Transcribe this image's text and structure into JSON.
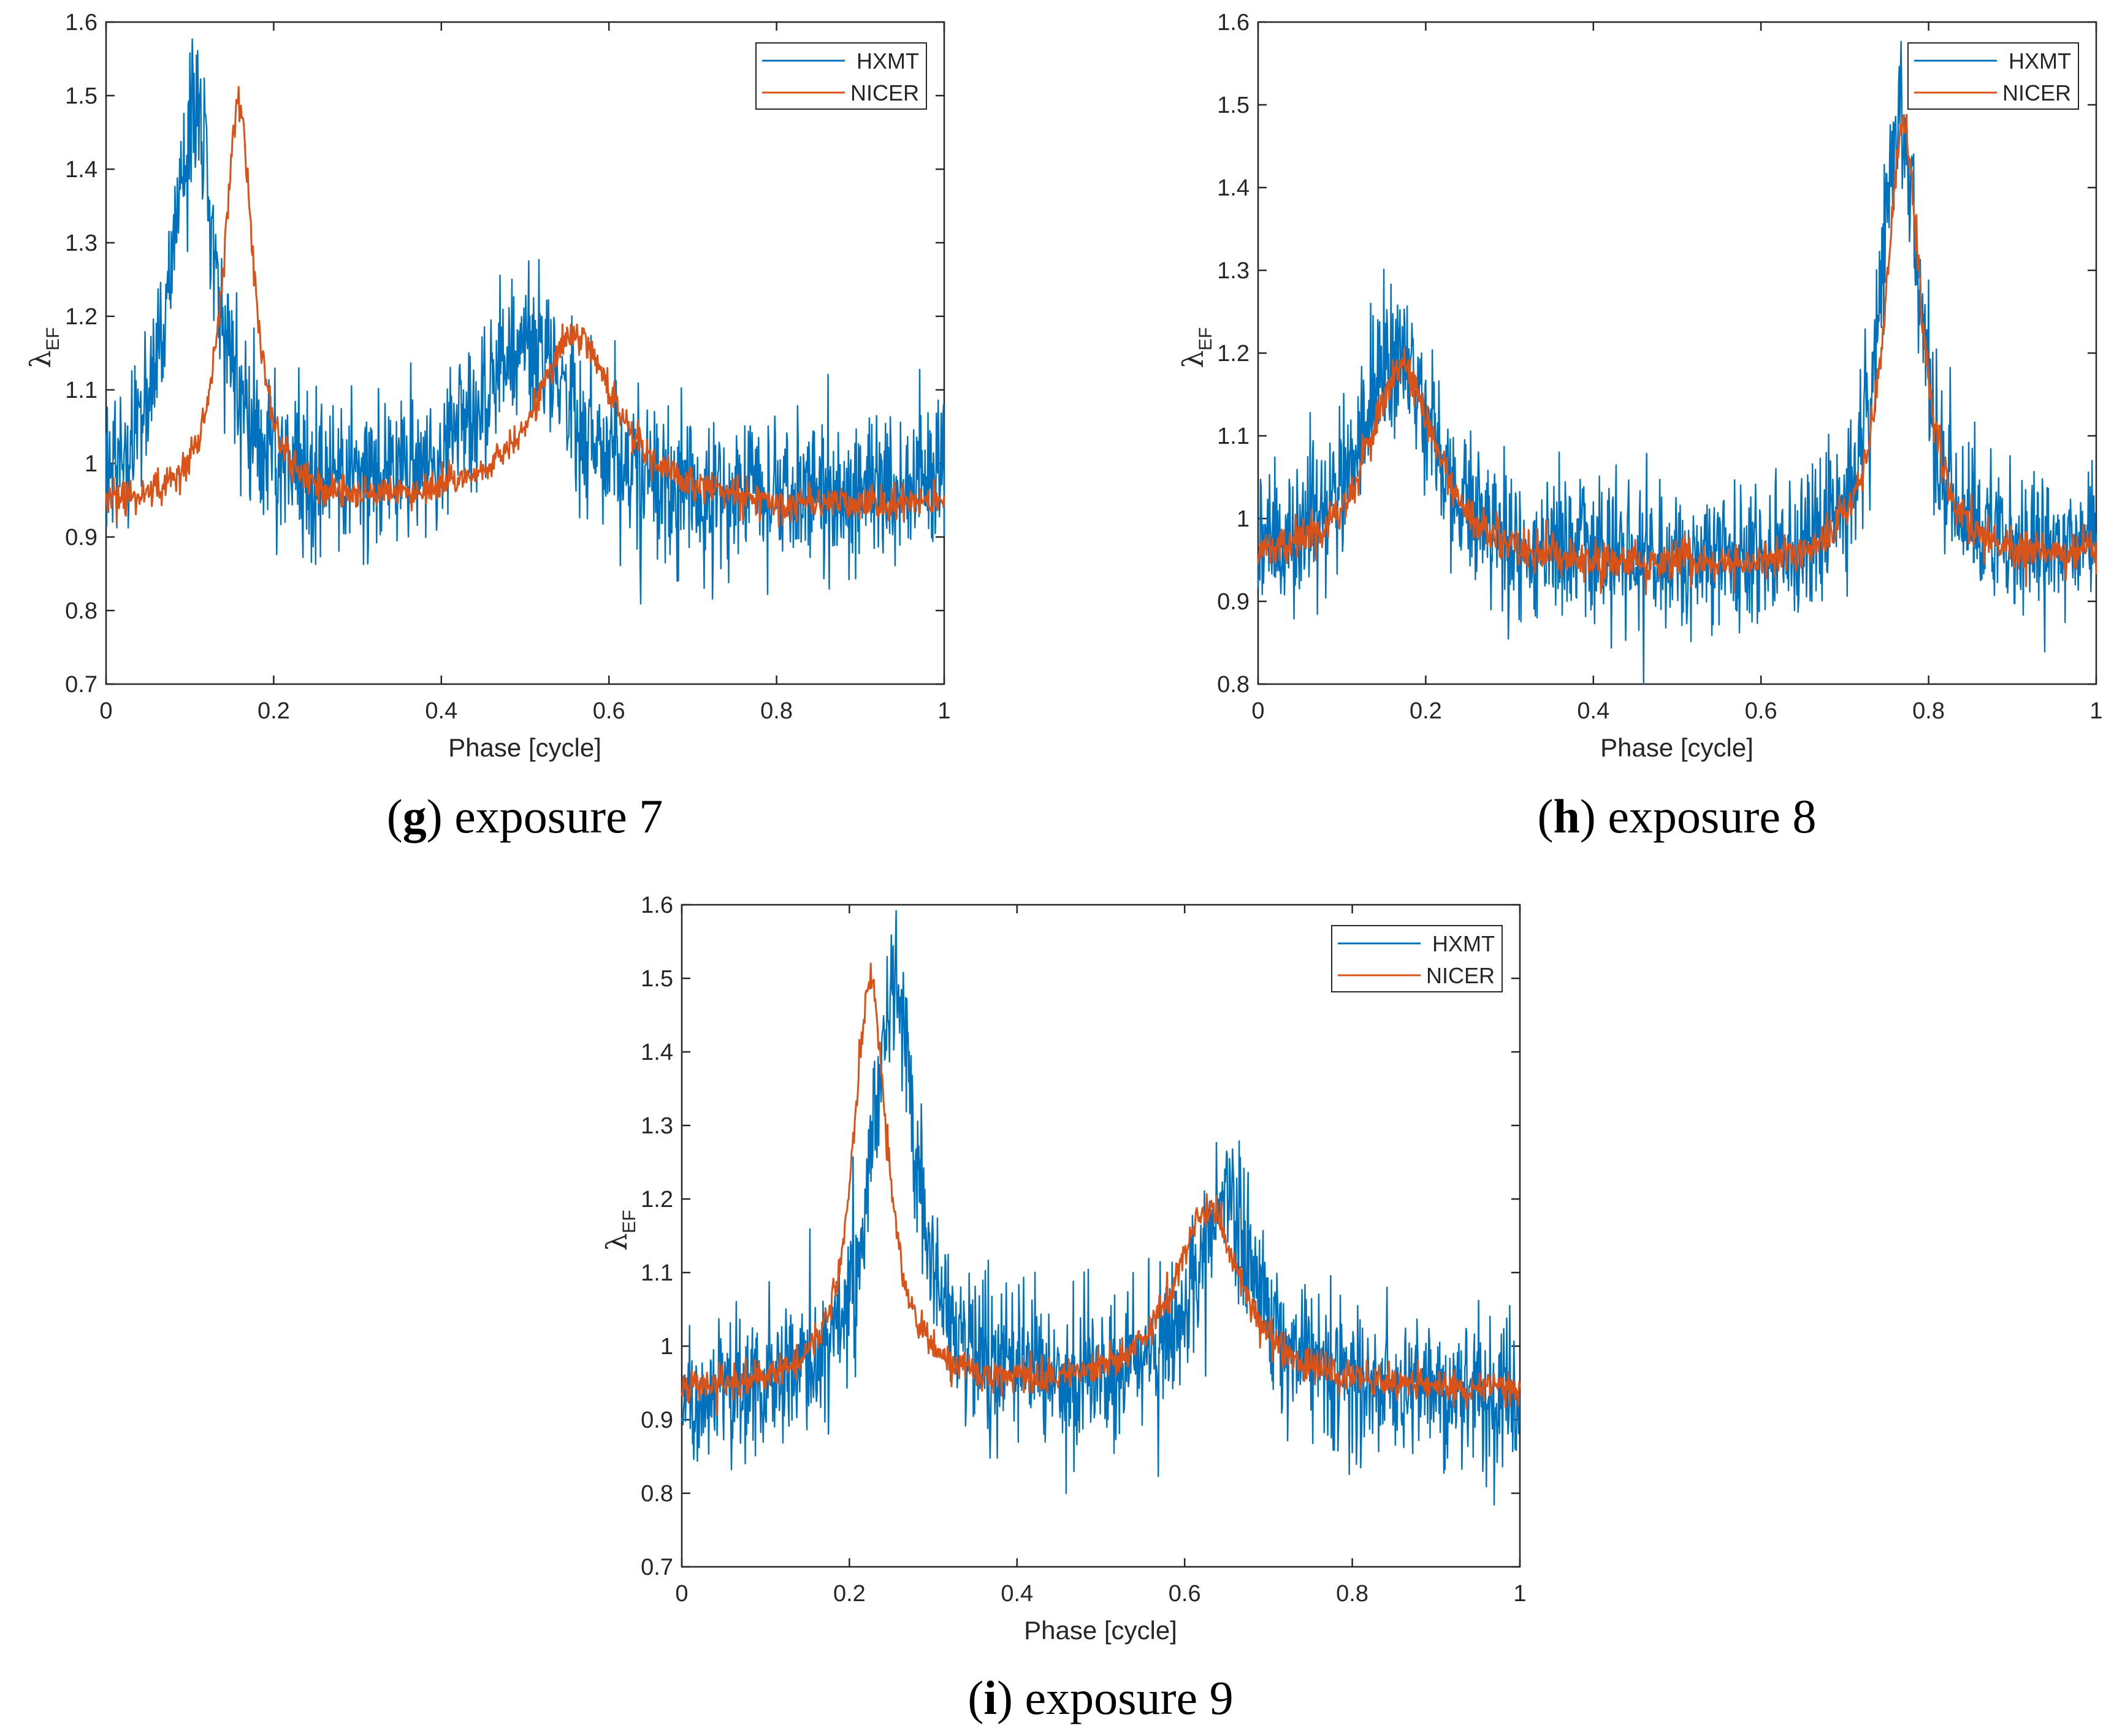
{
  "figure": {
    "panels": [
      {
        "letter": "g",
        "text": "exposure 7"
      },
      {
        "letter": "h",
        "text": "exposure 8"
      },
      {
        "letter": "i",
        "text": "exposure 9"
      }
    ]
  },
  "colors": {
    "hxmt": "#0072BD",
    "nicer": "#D95319",
    "axis": "#262626"
  },
  "chart_data": [
    {
      "type": "line",
      "title": "(g) exposure 7",
      "xlabel": "Phase [cycle]",
      "ylabel": "λ",
      "ylabel_sub": "EF",
      "xlim": [
        0,
        1
      ],
      "ylim": [
        0.7,
        1.6
      ],
      "xticks": [
        "0",
        "0.2",
        "0.4",
        "0.6",
        "0.8",
        "1"
      ],
      "yticks": [
        "0.7",
        "0.8",
        "0.9",
        "1",
        "1.1",
        "1.2",
        "1.3",
        "1.4",
        "1.5",
        "1.6"
      ],
      "legend": [
        "HXMT",
        "NICER"
      ],
      "series": [
        {
          "name": "HXMT",
          "baseline": 0.94,
          "noise": 0.05,
          "peaks": [
            {
              "x": 0.105,
              "amp": 0.52,
              "w": 0.035
            },
            {
              "x": 0.5,
              "amp": 0.25,
              "w": 0.07
            }
          ]
        },
        {
          "name": "NICER",
          "baseline": 0.935,
          "noise": 0.012,
          "peaks": [
            {
              "x": 0.158,
              "amp": 0.55,
              "w": 0.022
            },
            {
              "x": 0.56,
              "amp": 0.27,
              "w": 0.06
            }
          ]
        }
      ]
    },
    {
      "type": "line",
      "title": "(h) exposure 8",
      "xlabel": "Phase [cycle]",
      "ylabel": "λ",
      "ylabel_sub": "EF",
      "xlim": [
        0,
        1
      ],
      "ylim": [
        0.8,
        1.6
      ],
      "xticks": [
        "0",
        "0.2",
        "0.4",
        "0.6",
        "0.8",
        "1"
      ],
      "yticks": [
        "0.8",
        "0.9",
        "1",
        "1.1",
        "1.2",
        "1.3",
        "1.4",
        "1.5",
        "1.6"
      ],
      "legend": [
        "HXMT",
        "NICER"
      ],
      "series": [
        {
          "name": "HXMT",
          "baseline": 0.94,
          "noise": 0.045,
          "peaks": [
            {
              "x": 0.165,
              "amp": 0.3,
              "w": 0.05
            },
            {
              "x": 0.765,
              "amp": 0.55,
              "w": 0.028
            }
          ]
        },
        {
          "name": "NICER",
          "baseline": 0.935,
          "noise": 0.012,
          "peaks": [
            {
              "x": 0.172,
              "amp": 0.28,
              "w": 0.05
            },
            {
              "x": 0.77,
              "amp": 0.54,
              "w": 0.026
            }
          ]
        }
      ]
    },
    {
      "type": "line",
      "title": "(i) exposure 9",
      "xlabel": "Phase [cycle]",
      "ylabel": "λ",
      "ylabel_sub": "EF",
      "xlim": [
        0,
        1
      ],
      "ylim": [
        0.7,
        1.6
      ],
      "xticks": [
        "0",
        "0.2",
        "0.4",
        "0.6",
        "0.8",
        "1"
      ],
      "yticks": [
        "0.7",
        "0.8",
        "0.9",
        "1",
        "1.1",
        "1.2",
        "1.3",
        "1.4",
        "1.5",
        "1.6"
      ],
      "legend": [
        "HXMT",
        "NICER"
      ],
      "series": [
        {
          "name": "HXMT",
          "baseline": 0.93,
          "noise": 0.05,
          "peaks": [
            {
              "x": 0.253,
              "amp": 0.56,
              "w": 0.032
            },
            {
              "x": 0.652,
              "amp": 0.3,
              "w": 0.045
            }
          ]
        },
        {
          "name": "NICER",
          "baseline": 0.935,
          "noise": 0.012,
          "peaks": [
            {
              "x": 0.225,
              "amp": 0.56,
              "w": 0.025
            },
            {
              "x": 0.628,
              "amp": 0.28,
              "w": 0.05
            }
          ]
        }
      ]
    }
  ]
}
